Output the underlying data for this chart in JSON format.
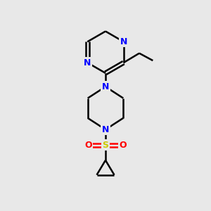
{
  "background_color": "#e8e8e8",
  "bond_color": "#000000",
  "nitrogen_color": "#0000ff",
  "sulfur_color": "#cccc00",
  "oxygen_color": "#ff0000",
  "line_width": 1.8,
  "fig_width": 3.0,
  "fig_height": 3.0,
  "dpi": 100,
  "xlim": [
    0,
    10
  ],
  "ylim": [
    0,
    10
  ]
}
